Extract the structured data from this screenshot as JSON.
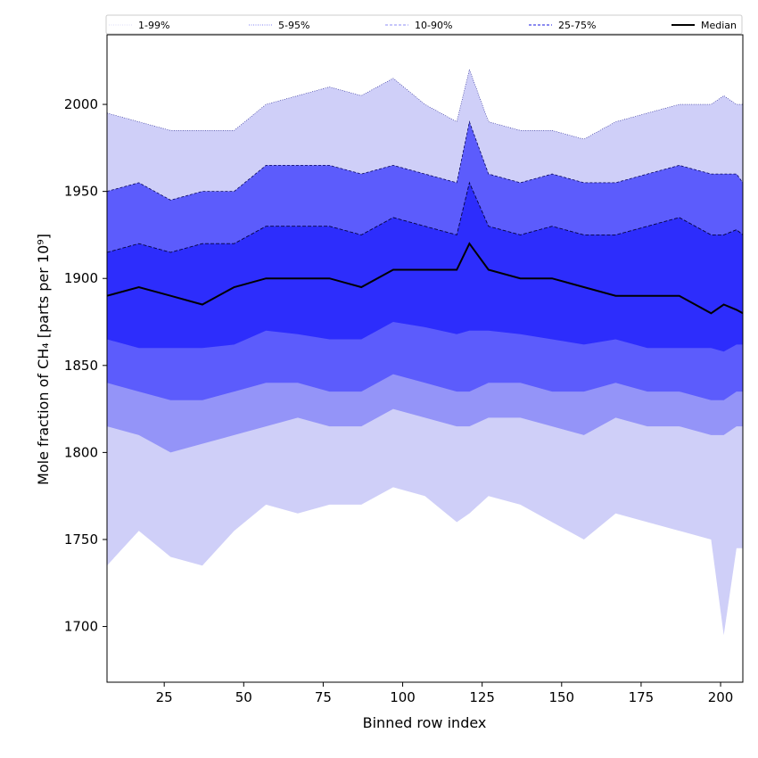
{
  "chart_data": {
    "type": "area",
    "xlabel": "Binned row index",
    "ylabel": "Mole fraction of CH₄ [parts per 10⁹]",
    "xlim": [
      7,
      207
    ],
    "ylim": [
      1668,
      2040
    ],
    "xticks": [
      25,
      50,
      75,
      100,
      125,
      150,
      175,
      200
    ],
    "yticks": [
      1700,
      1750,
      1800,
      1850,
      1900,
      1950,
      2000
    ],
    "grid": false,
    "legend_position": "top",
    "legend": [
      {
        "label": "1-99%",
        "style": "dotted",
        "color": "#d0d0f5"
      },
      {
        "label": "5-95%",
        "style": "dotted",
        "color": "#5a5af0"
      },
      {
        "label": "10-90%",
        "style": "dashed",
        "color": "#8c8cf5"
      },
      {
        "label": "25-75%",
        "style": "dashed",
        "color": "#4646e6"
      },
      {
        "label": "Median",
        "style": "solid",
        "color": "#000000"
      }
    ],
    "band_colors": [
      "#cfcff8",
      "#9494f8",
      "#5c5cfc",
      "#2d2dfc"
    ],
    "x": [
      7,
      17,
      27,
      37,
      47,
      57,
      67,
      77,
      87,
      97,
      107,
      117,
      121,
      127,
      137,
      147,
      157,
      167,
      177,
      187,
      197,
      201,
      205,
      207
    ],
    "series": [
      {
        "name": "1-99%",
        "lower": [
          1735,
          1755,
          1740,
          1735,
          1755,
          1770,
          1765,
          1770,
          1770,
          1780,
          1775,
          1760,
          1765,
          1775,
          1770,
          1760,
          1750,
          1765,
          1760,
          1755,
          1750,
          1695,
          1745,
          1745
        ],
        "upper": [
          1995,
          1990,
          1985,
          1985,
          1985,
          2000,
          2005,
          2010,
          2005,
          2015,
          2000,
          1990,
          2020,
          1990,
          1985,
          1985,
          1980,
          1990,
          1995,
          2000,
          2000,
          2005,
          2000,
          2000
        ]
      },
      {
        "name": "5-95%",
        "lower": [
          1815,
          1810,
          1800,
          1805,
          1810,
          1815,
          1820,
          1815,
          1815,
          1825,
          1820,
          1815,
          1815,
          1820,
          1820,
          1815,
          1810,
          1820,
          1815,
          1815,
          1810,
          1810,
          1815,
          1815
        ]
      },
      {
        "name": "10-90%",
        "lower": [
          1840,
          1835,
          1830,
          1830,
          1835,
          1840,
          1840,
          1835,
          1835,
          1845,
          1840,
          1835,
          1835,
          1840,
          1840,
          1835,
          1835,
          1840,
          1835,
          1835,
          1830,
          1830,
          1835,
          1835
        ],
        "upper": [
          1950,
          1955,
          1945,
          1950,
          1950,
          1965,
          1965,
          1965,
          1960,
          1965,
          1960,
          1955,
          1990,
          1960,
          1955,
          1960,
          1955,
          1955,
          1960,
          1965,
          1960,
          1960,
          1960,
          1955
        ]
      },
      {
        "name": "25-75%",
        "lower": [
          1865,
          1860,
          1860,
          1860,
          1862,
          1870,
          1868,
          1865,
          1865,
          1875,
          1872,
          1868,
          1870,
          1870,
          1868,
          1865,
          1862,
          1865,
          1860,
          1860,
          1860,
          1858,
          1862,
          1862
        ],
        "upper": [
          1915,
          1920,
          1915,
          1920,
          1920,
          1930,
          1930,
          1930,
          1925,
          1935,
          1930,
          1925,
          1955,
          1930,
          1925,
          1930,
          1925,
          1925,
          1930,
          1935,
          1925,
          1925,
          1928,
          1925
        ]
      },
      {
        "name": "Median",
        "values": [
          1890,
          1895,
          1890,
          1885,
          1895,
          1900,
          1900,
          1900,
          1895,
          1905,
          1905,
          1905,
          1920,
          1905,
          1900,
          1900,
          1895,
          1890,
          1890,
          1890,
          1880,
          1885,
          1882,
          1880
        ]
      }
    ]
  }
}
